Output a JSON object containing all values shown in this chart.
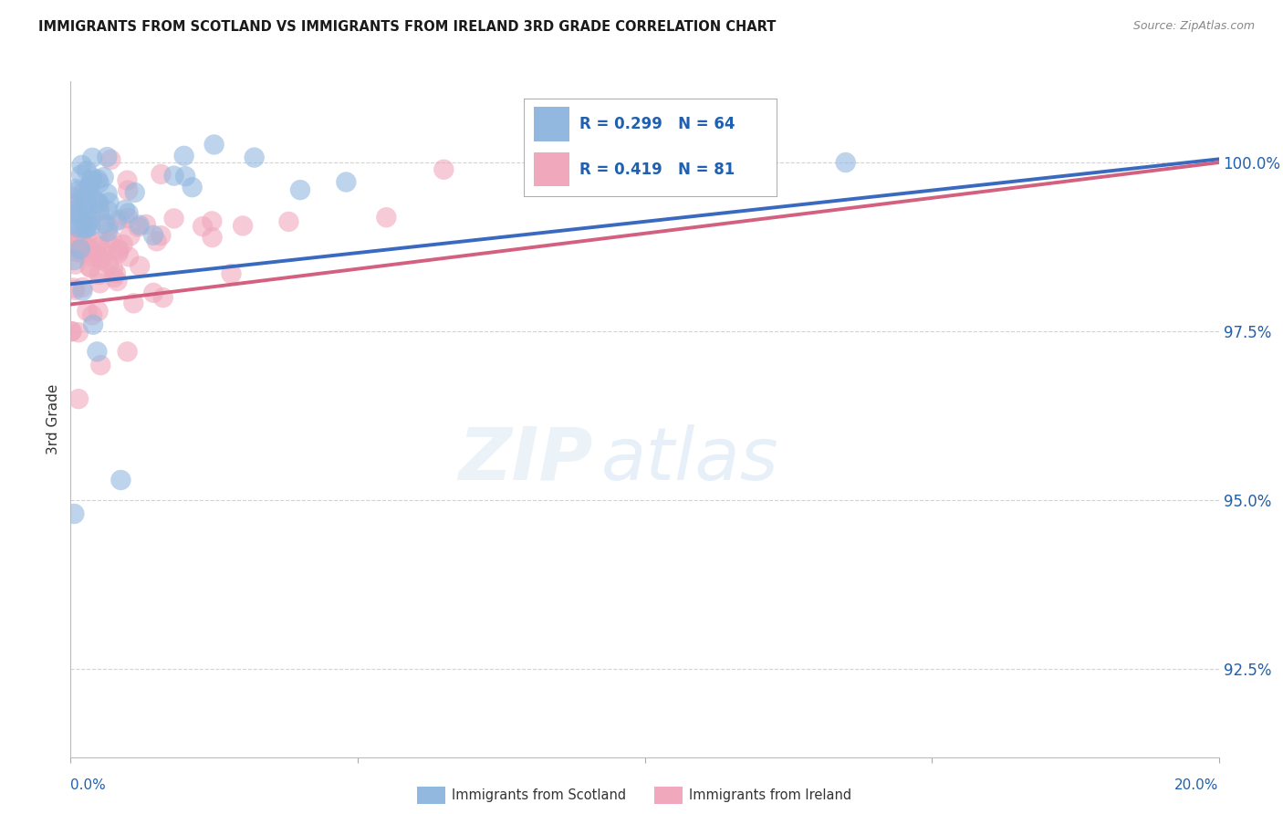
{
  "title": "IMMIGRANTS FROM SCOTLAND VS IMMIGRANTS FROM IRELAND 3RD GRADE CORRELATION CHART",
  "source": "Source: ZipAtlas.com",
  "ylabel": "3rd Grade",
  "ylabel_values": [
    92.5,
    95.0,
    97.5,
    100.0
  ],
  "xlim": [
    0.0,
    20.0
  ],
  "ylim": [
    91.2,
    101.2
  ],
  "legend_scotland": "Immigrants from Scotland",
  "legend_ireland": "Immigrants from Ireland",
  "R_scotland": 0.299,
  "N_scotland": 64,
  "R_ireland": 0.419,
  "N_ireland": 81,
  "scotland_color": "#92b8e0",
  "ireland_color": "#f0a8bc",
  "scotland_line_color": "#3a6abf",
  "ireland_line_color": "#d46080",
  "title_color": "#1a1a1a",
  "axis_label_color": "#2060b0",
  "grid_color": "#c8c8c8",
  "background_color": "#ffffff",
  "trendline_sc_x0": 0.0,
  "trendline_sc_y0": 98.2,
  "trendline_sc_x1": 20.0,
  "trendline_sc_y1": 100.05,
  "trendline_ir_x0": 0.0,
  "trendline_ir_y0": 97.9,
  "trendline_ir_x1": 20.0,
  "trendline_ir_y1": 100.0
}
